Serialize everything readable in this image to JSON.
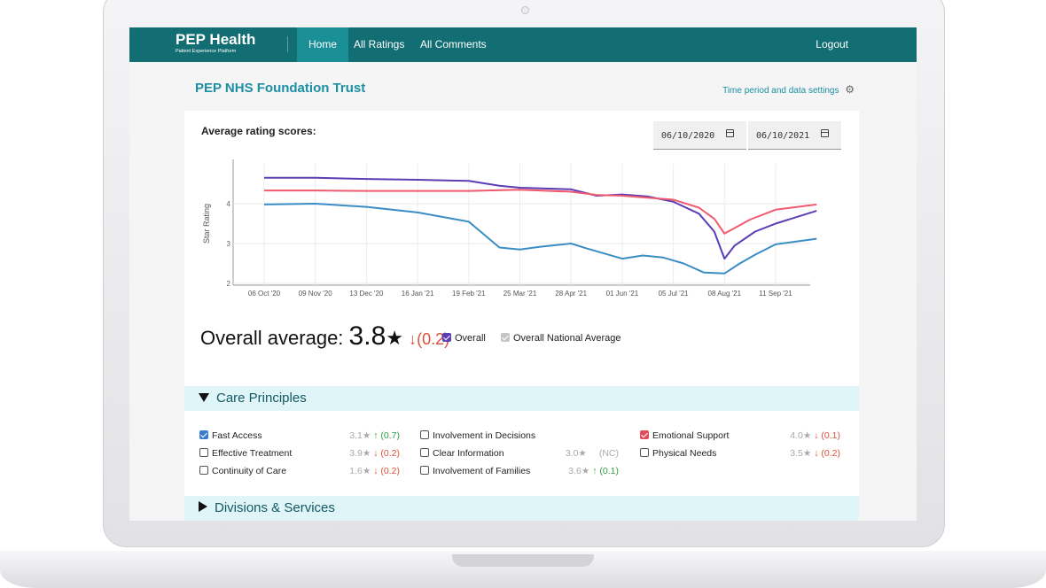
{
  "nav": {
    "logo_title": "PEP Health",
    "logo_subtitle": "Patient Experience Platform",
    "items": [
      "Home",
      "All Ratings",
      "All Comments"
    ],
    "logout": "Logout"
  },
  "page": {
    "trust_name": "PEP NHS Foundation Trust",
    "settings_link": "Time period and data settings"
  },
  "card": {
    "title": "Average rating scores:",
    "date_from": "06/10/2020",
    "date_to": "06/10/2021"
  },
  "chart_data": {
    "type": "line",
    "ylabel": "Star Rating",
    "xlabel": "",
    "ylim": [
      2,
      5
    ],
    "yticks": [
      "2",
      "3",
      "4"
    ],
    "categories": [
      "06 Oct '20",
      "09 Nov '20",
      "13 Dec '20",
      "16 Jan '21",
      "19 Feb '21",
      "25 Mar '21",
      "28 Apr '21",
      "01 Jun '21",
      "05 Jul '21",
      "08 Aug '21",
      "11 Sep '21"
    ],
    "series": [
      {
        "name": "Overall",
        "color": "#5b3db5",
        "x": [
          0,
          1,
          2,
          3,
          4,
          4.6,
          5,
          6,
          6.5,
          7,
          7.5,
          8,
          8.5,
          8.8,
          9,
          9.2,
          9.6,
          10,
          10.8
        ],
        "values": [
          4.65,
          4.65,
          4.62,
          4.6,
          4.57,
          4.45,
          4.4,
          4.36,
          4.2,
          4.23,
          4.18,
          4.05,
          3.75,
          3.3,
          2.62,
          2.95,
          3.3,
          3.5,
          3.82
        ]
      },
      {
        "name": "Overall National Average",
        "color": "#f05a6e",
        "x": [
          0,
          1,
          2,
          3,
          4,
          5,
          6,
          6.5,
          7,
          8,
          8.5,
          8.8,
          9,
          9.5,
          10,
          10.8
        ],
        "values": [
          4.33,
          4.33,
          4.32,
          4.32,
          4.32,
          4.35,
          4.3,
          4.22,
          4.2,
          4.1,
          3.9,
          3.62,
          3.25,
          3.6,
          3.85,
          3.98
        ]
      },
      {
        "name": "Fast Access",
        "color": "#3a8dc4",
        "x": [
          0,
          1,
          2,
          3,
          4,
          4.6,
          5,
          5.4,
          6,
          6.3,
          7,
          7.4,
          7.8,
          8.2,
          8.6,
          9,
          9.3,
          9.6,
          10,
          10.8
        ],
        "values": [
          3.98,
          4.0,
          3.92,
          3.78,
          3.55,
          2.9,
          2.85,
          2.92,
          3.0,
          2.88,
          2.62,
          2.7,
          2.65,
          2.5,
          2.27,
          2.25,
          2.5,
          2.72,
          2.98,
          3.12
        ]
      }
    ]
  },
  "summary": {
    "label": "Overall average:",
    "value": "3.8",
    "star": "★",
    "change": "↓(0.2)",
    "legend_overall": "Overall",
    "legend_national": "Overall National Average"
  },
  "care_principles": {
    "title": "Care Principles",
    "items": [
      {
        "label": "Fast Access",
        "checked": true,
        "score": "3.1★",
        "change": "↑ (0.7)",
        "dir": "up"
      },
      {
        "label": "Effective Treatment",
        "checked": false,
        "score": "3.9★",
        "change": "↓ (0.2)",
        "dir": "down"
      },
      {
        "label": "Continuity of Care",
        "checked": false,
        "score": "1.6★",
        "change": "↓ (0.2)",
        "dir": "down"
      },
      {
        "label": "Involvement in Decisions",
        "checked": false,
        "score": "",
        "change": "",
        "dir": ""
      },
      {
        "label": "Clear Information",
        "checked": false,
        "score": "3.0★",
        "change": "(NC)",
        "dir": "nc"
      },
      {
        "label": "Involvement of Families",
        "checked": false,
        "score": "3.6★",
        "change": "↑ (0.1)",
        "dir": "up"
      },
      {
        "label": "Emotional Support",
        "checked": true,
        "score": "4.0★",
        "change": "↓ (0.1)",
        "dir": "down"
      },
      {
        "label": "Physical Needs",
        "checked": false,
        "score": "3.5★",
        "change": "↓ (0.2)",
        "dir": "down"
      }
    ]
  },
  "divisions": {
    "title": "Divisions & Services"
  },
  "colors": {
    "nav": "#126e73",
    "nav_active": "#1a8f95",
    "accent": "#1b8fa3",
    "checkbox_blue": "#3a7ccf",
    "checkbox_red": "#e04e5e",
    "checkbox_grey": "#c6c6c6",
    "section_bg": "#e0f5f8"
  }
}
